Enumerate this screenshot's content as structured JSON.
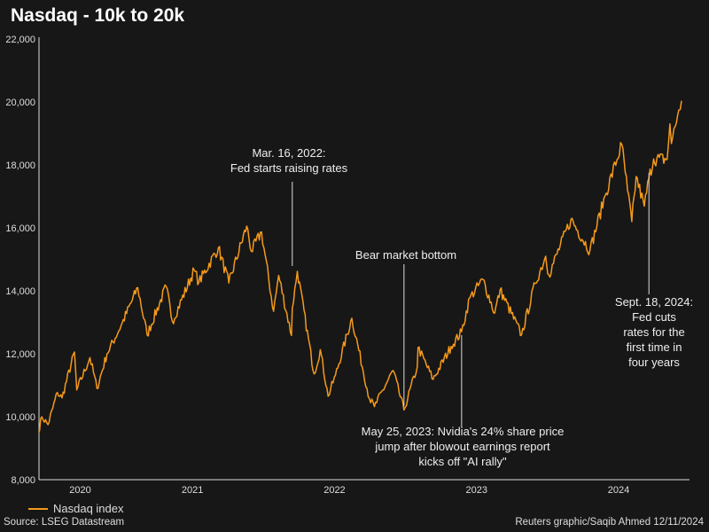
{
  "chart_data": {
    "type": "line",
    "title": "Nasdaq - 10k to 20k",
    "xlabel": "",
    "ylabel": "",
    "ylim": [
      8000,
      22000
    ],
    "yticks": [
      "22,000",
      "20,000",
      "18,000",
      "16,000",
      "14,000",
      "12,000",
      "10,000",
      "8,000"
    ],
    "ytick_values": [
      22000,
      20000,
      18000,
      16000,
      14000,
      12000,
      10000,
      8000
    ],
    "xticks": [
      "2020",
      "2021",
      "2022",
      "2023",
      "2024"
    ],
    "grid": false,
    "legend_placement": "bottom-left",
    "series": [
      {
        "name": "Nasdaq index",
        "color": "#f59a1c",
        "points": [
          [
            "2020-06-01",
            9500
          ],
          [
            "2020-06-10",
            10000
          ],
          [
            "2020-06-26",
            9750
          ],
          [
            "2020-07-20",
            10770
          ],
          [
            "2020-08-01",
            10600
          ],
          [
            "2020-09-02",
            12056
          ],
          [
            "2020-09-08",
            10850
          ],
          [
            "2020-10-12",
            11880
          ],
          [
            "2020-10-30",
            10900
          ],
          [
            "2020-11-25",
            12000
          ],
          [
            "2020-12-31",
            12890
          ],
          [
            "2021-02-12",
            14100
          ],
          [
            "2021-03-08",
            12600
          ],
          [
            "2021-04-26",
            14140
          ],
          [
            "2021-05-12",
            13030
          ],
          [
            "2021-07-07",
            14660
          ],
          [
            "2021-07-19",
            14270
          ],
          [
            "2021-09-07",
            15370
          ],
          [
            "2021-10-04",
            14250
          ],
          [
            "2021-11-19",
            16057
          ],
          [
            "2021-12-01",
            15250
          ],
          [
            "2021-12-27",
            15870
          ],
          [
            "2022-01-27",
            13350
          ],
          [
            "2022-02-09",
            14490
          ],
          [
            "2022-03-14",
            12580
          ],
          [
            "2022-03-16",
            13440
          ],
          [
            "2022-03-29",
            14620
          ],
          [
            "2022-05-11",
            11360
          ],
          [
            "2022-05-27",
            12130
          ],
          [
            "2022-06-16",
            10650
          ],
          [
            "2022-07-05",
            11320
          ],
          [
            "2022-08-16",
            13130
          ],
          [
            "2022-09-30",
            10580
          ],
          [
            "2022-10-13",
            10320
          ],
          [
            "2022-11-30",
            11470
          ],
          [
            "2022-12-28",
            10213
          ],
          [
            "2023-01-31",
            11580
          ],
          [
            "2023-02-02",
            12200
          ],
          [
            "2023-03-13",
            11190
          ],
          [
            "2023-04-28",
            12230
          ],
          [
            "2023-05-25",
            12700
          ],
          [
            "2023-06-15",
            13780
          ],
          [
            "2023-07-19",
            14360
          ],
          [
            "2023-08-18",
            13290
          ],
          [
            "2023-09-01",
            14030
          ],
          [
            "2023-10-26",
            12600
          ],
          [
            "2023-11-30",
            14230
          ],
          [
            "2023-12-27",
            15100
          ],
          [
            "2024-01-04",
            14510
          ],
          [
            "2024-03-01",
            16270
          ],
          [
            "2024-04-19",
            15280
          ],
          [
            "2024-05-28",
            17020
          ],
          [
            "2024-07-10",
            18650
          ],
          [
            "2024-07-25",
            17180
          ],
          [
            "2024-08-05",
            16200
          ],
          [
            "2024-08-16",
            17630
          ],
          [
            "2024-09-06",
            16690
          ],
          [
            "2024-09-18",
            17570
          ],
          [
            "2024-09-30",
            18190
          ],
          [
            "2024-11-04",
            18180
          ],
          [
            "2024-11-11",
            19300
          ],
          [
            "2024-11-15",
            18680
          ],
          [
            "2024-12-04",
            19740
          ],
          [
            "2024-12-11",
            20034
          ]
        ]
      }
    ],
    "annotations": [
      {
        "date": "2022-03-16",
        "lines": [
          "Mar. 16, 2022:",
          "Fed starts raising rates"
        ]
      },
      {
        "date": "2022-12-28",
        "lines": [
          "Bear market bottom"
        ]
      },
      {
        "date": "2023-05-25",
        "lines": [
          "May 25, 2023: Nvidia's 24% share price",
          "jump after blowout earnings report",
          "kicks off \"AI rally\""
        ]
      },
      {
        "date": "2024-09-18",
        "lines": [
          "Sept. 18, 2024:",
          "Fed cuts",
          "rates for the",
          "first time in",
          "four years"
        ]
      }
    ]
  },
  "footer": {
    "source": "Source: LSEG Datastream",
    "credit": "Reuters graphic/Saqib Ahmed 12/11/2024"
  }
}
